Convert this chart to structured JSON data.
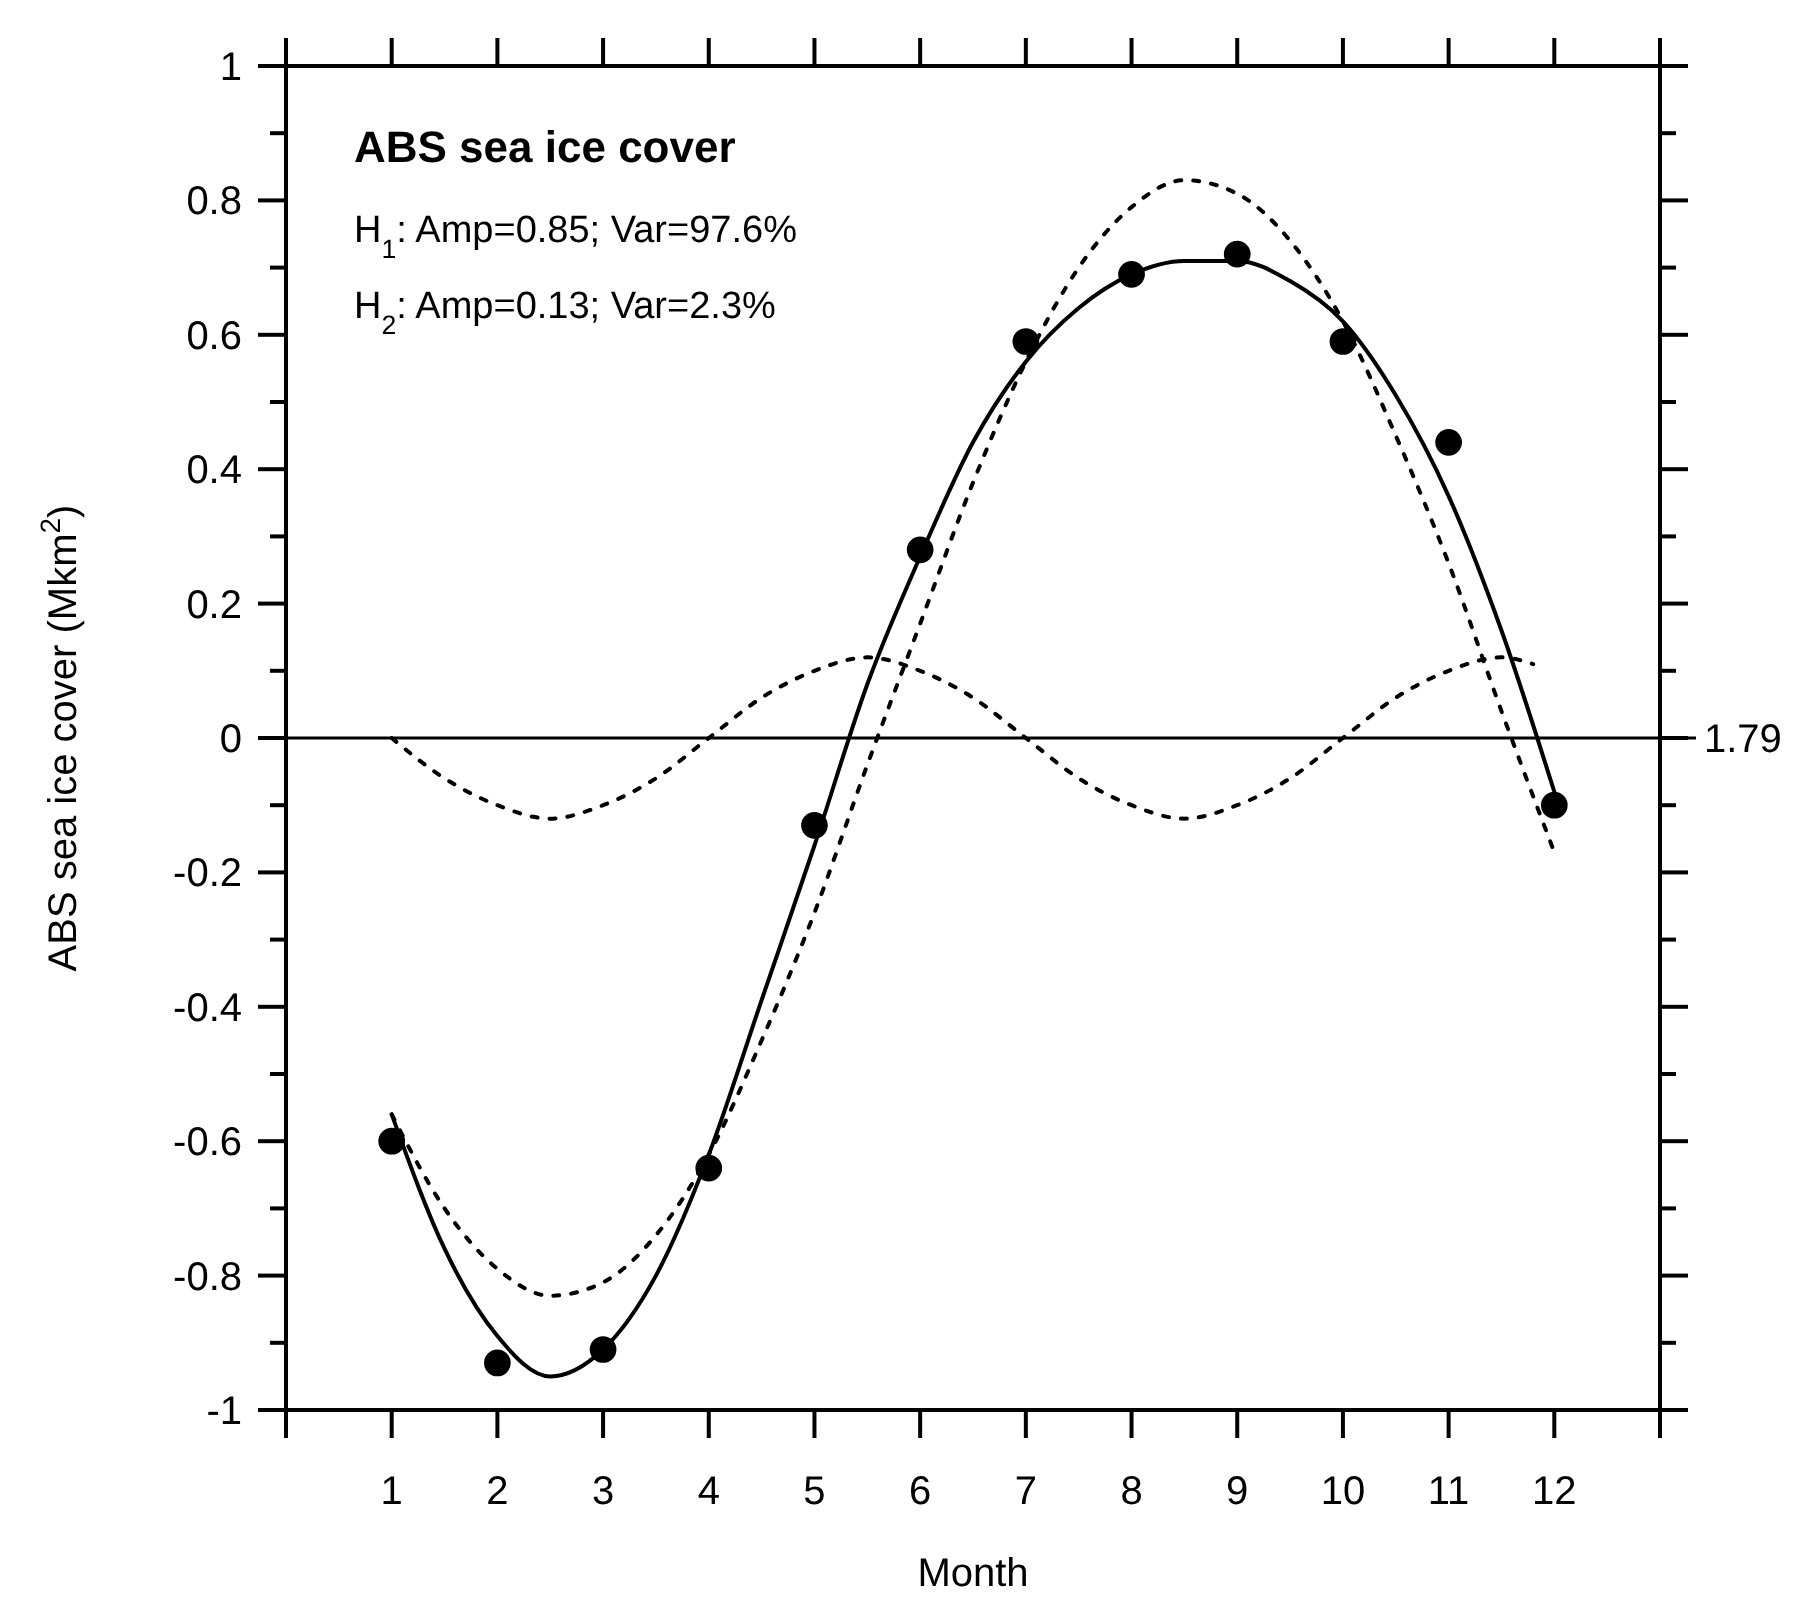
{
  "chart_data": {
    "type": "line",
    "title": "ABS sea ice cover",
    "xlabel": "Month",
    "ylabel": "ABS sea ice cover (Mkm$^{2}$)",
    "annotations": [
      "H$_{1}$: Amp=0.85; Var=97.6%",
      "H$_{2}$: Amp=0.13; Var=2.3%",
      "1.79"
    ],
    "xlim": [
      0,
      13
    ],
    "xticks": [
      {
        "value": 0,
        "label": null
      },
      1,
      2,
      3,
      4,
      5,
      6,
      7,
      8,
      9,
      10,
      11,
      12,
      {
        "value": 13,
        "label": null
      }
    ],
    "ylim": [
      -1,
      1
    ],
    "yticks": [
      -1,
      {
        "value": -0.9,
        "label": null
      },
      -0.8,
      {
        "value": -0.7,
        "label": null
      },
      -0.6,
      {
        "value": -0.5,
        "label": null
      },
      -0.4,
      {
        "value": -0.3,
        "label": null
      },
      -0.2,
      {
        "value": -0.1,
        "label": null
      },
      0,
      {
        "value": 0.1,
        "label": null
      },
      0.2,
      {
        "value": 0.3,
        "label": null
      },
      0.4,
      {
        "value": 0.5,
        "label": null
      },
      0.6,
      {
        "value": 0.7,
        "label": null
      },
      0.8,
      {
        "value": 0.9,
        "label": null
      },
      1
    ],
    "ref_lines": [
      {
        "axis": "y",
        "value": 0,
        "color": "#000000"
      }
    ],
    "series": [
      {
        "type": "scatter",
        "color": "#000000",
        "marker": "circle",
        "x": [
          1,
          2,
          3,
          4,
          5,
          6,
          7,
          8,
          9,
          10,
          11,
          12
        ],
        "values": [
          -0.6,
          -0.93,
          -0.91,
          -0.64,
          -0.13,
          0.28,
          0.59,
          0.69,
          0.72,
          0.59,
          0.44,
          -0.1
        ]
      },
      {
        "type": "line",
        "color": "#000000",
        "line_style": "solid",
        "x": [
          1,
          1.5,
          2,
          2.5,
          3,
          3.5,
          4,
          4.5,
          5,
          5.5,
          6,
          6.5,
          7,
          7.5,
          8,
          8.5,
          9,
          9.5,
          10,
          10.5,
          11,
          11.5,
          12
        ],
        "values": [
          -0.56,
          -0.76,
          -0.89,
          -0.95,
          -0.91,
          -0.8,
          -0.62,
          -0.39,
          -0.16,
          0.08,
          0.27,
          0.44,
          0.56,
          0.64,
          0.69,
          0.71,
          0.71,
          0.68,
          0.62,
          0.51,
          0.36,
          0.16,
          -0.08
        ]
      },
      {
        "type": "line",
        "color": "#000000",
        "line_style": "dotted",
        "x": [
          1,
          1.5,
          2,
          2.5,
          3,
          3.5,
          4,
          4.5,
          5,
          5.5,
          6,
          6.5,
          7,
          7.5,
          8,
          8.5,
          9,
          9.5,
          10,
          10.5,
          11,
          11.5,
          12
        ],
        "values": [
          -0.56,
          -0.7,
          -0.79,
          -0.83,
          -0.81,
          -0.74,
          -0.62,
          -0.45,
          -0.26,
          -0.04,
          0.17,
          0.38,
          0.56,
          0.7,
          0.79,
          0.83,
          0.81,
          0.74,
          0.62,
          0.45,
          0.26,
          0.04,
          -0.17
        ]
      },
      {
        "type": "line",
        "color": "#000000",
        "line_style": "dotted",
        "x": [
          1,
          1.5,
          2,
          2.5,
          3,
          3.5,
          4,
          4.5,
          5,
          5.5,
          6,
          6.5,
          7,
          7.5,
          8,
          8.5,
          9,
          9.5,
          10,
          10.5,
          11,
          11.5,
          11.8
        ],
        "values": [
          0,
          -0.06,
          -0.1,
          -0.12,
          -0.1,
          -0.06,
          0,
          0.06,
          0.1,
          0.12,
          0.1,
          0.06,
          0,
          -0.06,
          -0.1,
          -0.12,
          -0.1,
          -0.06,
          0,
          0.06,
          0.1,
          0.12,
          0.11
        ]
      }
    ]
  }
}
